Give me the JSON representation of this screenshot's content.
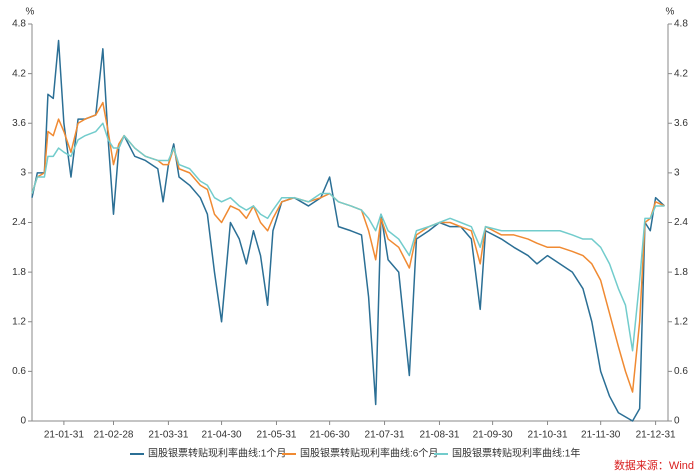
{
  "chart_data": {
    "type": "line",
    "y_unit": "%",
    "y2_unit": "%",
    "source": "数据来源：Wind",
    "x": [
      "21-01-13",
      "21-01-16",
      "21-01-20",
      "21-01-22",
      "21-01-25",
      "21-01-28",
      "21-01-31",
      "21-02-04",
      "21-02-08",
      "21-02-12",
      "21-02-18",
      "21-02-22",
      "21-02-25",
      "21-02-28",
      "21-03-03",
      "21-03-06",
      "21-03-12",
      "21-03-18",
      "21-03-25",
      "21-03-28",
      "21-03-31",
      "21-04-03",
      "21-04-06",
      "21-04-12",
      "21-04-18",
      "21-04-22",
      "21-04-26",
      "21-04-30",
      "21-05-05",
      "21-05-10",
      "21-05-14",
      "21-05-18",
      "21-05-22",
      "21-05-26",
      "21-05-29",
      "21-06-03",
      "21-06-10",
      "21-06-18",
      "21-06-25",
      "21-06-30",
      "21-07-05",
      "21-07-12",
      "21-07-18",
      "21-07-22",
      "21-07-26",
      "21-07-29",
      "21-08-02",
      "21-08-08",
      "21-08-14",
      "21-08-18",
      "21-08-25",
      "21-08-31",
      "21-09-06",
      "21-09-12",
      "21-09-18",
      "21-09-23",
      "21-09-26",
      "21-10-05",
      "21-10-12",
      "21-10-20",
      "21-10-25",
      "21-10-31",
      "21-11-07",
      "21-11-14",
      "21-11-20",
      "21-11-25",
      "21-11-30",
      "21-12-05",
      "21-12-10",
      "21-12-14",
      "21-12-18",
      "21-12-22",
      "21-12-25",
      "21-12-28",
      "21-12-31",
      "22-01-05"
    ],
    "series": [
      {
        "name": "国股银票转贴现利率曲线:1个月",
        "color": "#2b6f95",
        "values": [
          2.7,
          3.0,
          3.0,
          3.95,
          3.9,
          4.6,
          3.6,
          2.95,
          3.65,
          3.65,
          3.7,
          4.5,
          3.4,
          2.5,
          3.3,
          3.45,
          3.2,
          3.15,
          3.05,
          2.65,
          3.1,
          3.35,
          2.95,
          2.85,
          2.7,
          2.5,
          1.8,
          1.2,
          2.4,
          2.2,
          1.9,
          2.3,
          2.0,
          1.4,
          2.3,
          2.65,
          2.7,
          2.6,
          2.7,
          2.95,
          2.35,
          2.3,
          2.25,
          1.5,
          0.2,
          2.5,
          1.95,
          1.8,
          0.55,
          2.2,
          2.3,
          2.4,
          2.35,
          2.35,
          2.2,
          1.35,
          2.3,
          2.2,
          2.1,
          2.0,
          1.9,
          2.0,
          1.9,
          1.8,
          1.6,
          1.2,
          0.6,
          0.3,
          0.1,
          0.05,
          0.0,
          0.15,
          2.4,
          2.3,
          2.7,
          2.6
        ]
      },
      {
        "name": "国股银票转贴现利率曲线:6个月",
        "color": "#f08a32",
        "values": [
          2.75,
          2.95,
          3.0,
          3.5,
          3.45,
          3.65,
          3.5,
          3.25,
          3.6,
          3.65,
          3.7,
          3.85,
          3.5,
          3.1,
          3.35,
          3.45,
          3.3,
          3.2,
          3.15,
          3.1,
          3.1,
          3.3,
          3.05,
          3.0,
          2.85,
          2.8,
          2.5,
          2.4,
          2.6,
          2.55,
          2.45,
          2.6,
          2.4,
          2.3,
          2.45,
          2.65,
          2.7,
          2.65,
          2.7,
          2.75,
          2.65,
          2.6,
          2.55,
          2.3,
          1.95,
          2.45,
          2.2,
          2.1,
          1.85,
          2.25,
          2.35,
          2.4,
          2.4,
          2.35,
          2.3,
          1.9,
          2.35,
          2.25,
          2.25,
          2.2,
          2.15,
          2.1,
          2.1,
          2.05,
          2.0,
          1.9,
          1.7,
          1.3,
          0.9,
          0.6,
          0.35,
          1.2,
          2.4,
          2.45,
          2.65,
          2.6
        ]
      },
      {
        "name": "国股银票转贴现利率曲线:1年",
        "color": "#72cccc",
        "values": [
          2.75,
          2.95,
          2.95,
          3.2,
          3.2,
          3.3,
          3.25,
          3.2,
          3.4,
          3.45,
          3.5,
          3.6,
          3.4,
          3.3,
          3.3,
          3.45,
          3.3,
          3.2,
          3.15,
          3.15,
          3.15,
          3.3,
          3.1,
          3.05,
          2.9,
          2.85,
          2.7,
          2.65,
          2.7,
          2.6,
          2.55,
          2.6,
          2.5,
          2.45,
          2.55,
          2.7,
          2.7,
          2.65,
          2.75,
          2.75,
          2.65,
          2.6,
          2.55,
          2.45,
          2.3,
          2.5,
          2.3,
          2.2,
          2.0,
          2.3,
          2.35,
          2.4,
          2.45,
          2.4,
          2.35,
          2.1,
          2.35,
          2.3,
          2.3,
          2.3,
          2.3,
          2.3,
          2.3,
          2.25,
          2.2,
          2.2,
          2.1,
          1.9,
          1.6,
          1.4,
          0.85,
          1.7,
          2.45,
          2.45,
          2.6,
          2.6
        ]
      }
    ],
    "xlim": [
      "21-01-13",
      "22-01-07"
    ],
    "xticks": [
      "21-01-31",
      "21-02-28",
      "21-03-31",
      "21-04-30",
      "21-05-31",
      "21-06-30",
      "21-07-31",
      "21-08-31",
      "21-09-30",
      "21-10-31",
      "21-11-30",
      "21-12-31"
    ],
    "ylim": [
      0,
      4.8
    ],
    "yticks": [
      0,
      0.6,
      1.2,
      1.8,
      2.4,
      3,
      3.6,
      4.2,
      4.8
    ],
    "y2lim": [
      0,
      4.8
    ],
    "y2ticks": [
      0,
      0.6,
      1.2,
      1.8,
      2.4,
      3,
      3.6,
      4.2,
      4.8
    ],
    "legend": "bottom"
  }
}
